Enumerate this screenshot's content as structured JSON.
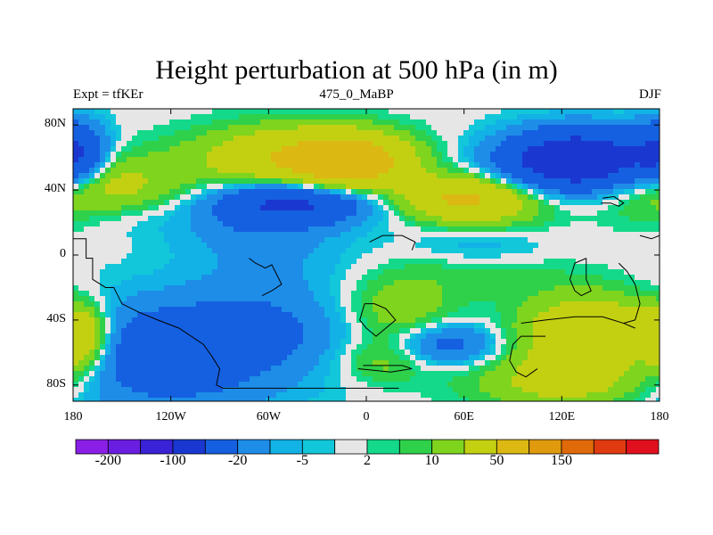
{
  "title": "Height perturbation at 500 hPa (in m)",
  "left_string": "Expt = tfKEr",
  "center_string": "475_0_MaBP",
  "right_string": "DJF",
  "chart_data": {
    "type": "heatmap",
    "variable": "500 hPa geopotential height perturbation",
    "units": "m",
    "xlim": [
      -180,
      180
    ],
    "ylim": [
      -90,
      90
    ],
    "xticks": [
      {
        "value": -180,
        "label": "180"
      },
      {
        "value": -120,
        "label": "120W"
      },
      {
        "value": -60,
        "label": "60W"
      },
      {
        "value": 0,
        "label": "0"
      },
      {
        "value": 60,
        "label": "60E"
      },
      {
        "value": 120,
        "label": "120E"
      },
      {
        "value": 180,
        "label": "180"
      }
    ],
    "yticks": [
      {
        "value": 80,
        "label": "80N"
      },
      {
        "value": 40,
        "label": "40N"
      },
      {
        "value": 0,
        "label": "0"
      },
      {
        "value": -40,
        "label": "40S"
      },
      {
        "value": -80,
        "label": "80S"
      }
    ],
    "levels": [
      -200,
      -150,
      -100,
      -50,
      -20,
      -10,
      -5,
      -2,
      2,
      5,
      10,
      20,
      50,
      100,
      150,
      200
    ],
    "colorbar_labels": [
      "-200",
      "-100",
      "-20",
      "-5",
      "2",
      "10",
      "50",
      "150"
    ],
    "colors": [
      "#8a1fe6",
      "#6a1ee0",
      "#3a22d6",
      "#1a38d0",
      "#1560e0",
      "#1e8de8",
      "#12b2e6",
      "#12c7d9",
      "#e6e6e6",
      "#14d98a",
      "#2fd04a",
      "#7fd41e",
      "#c3d012",
      "#dcb812",
      "#e09a0e",
      "#e06a0a",
      "#e03a10",
      "#e0101e"
    ],
    "field_features": [
      {
        "lon": -165,
        "lat": 42,
        "value": 30,
        "sx": 35,
        "sy": 14
      },
      {
        "lon": -45,
        "lat": 60,
        "value": 45,
        "sx": 40,
        "sy": 13
      },
      {
        "lon": -10,
        "lat": 57,
        "value": 65,
        "sx": 24,
        "sy": 11
      },
      {
        "lon": 55,
        "lat": 36,
        "value": 38,
        "sx": 25,
        "sy": 9
      },
      {
        "lon": 75,
        "lat": 32,
        "value": 24,
        "sx": 28,
        "sy": 10
      },
      {
        "lon": 130,
        "lat": 58,
        "value": -90,
        "sx": 32,
        "sy": 13
      },
      {
        "lon": -178,
        "lat": 62,
        "value": -45,
        "sx": 12,
        "sy": 14
      },
      {
        "lon": -45,
        "lat": 33,
        "value": -55,
        "sx": 32,
        "sy": 9
      },
      {
        "lon": -70,
        "lat": 20,
        "value": -12,
        "sx": 40,
        "sy": 12
      },
      {
        "lon": -60,
        "lat": -5,
        "value": -10,
        "sx": 35,
        "sy": 18
      },
      {
        "lon": 70,
        "lat": 5,
        "value": -8,
        "sx": 28,
        "sy": 8
      },
      {
        "lon": -125,
        "lat": -62,
        "value": -35,
        "sx": 55,
        "sy": 24
      },
      {
        "lon": -60,
        "lat": -45,
        "value": -14,
        "sx": 40,
        "sy": 16
      },
      {
        "lon": 20,
        "lat": -35,
        "value": 18,
        "sx": 24,
        "sy": 15
      },
      {
        "lon": 10,
        "lat": -65,
        "value": 14,
        "sx": 20,
        "sy": 10
      },
      {
        "lon": 50,
        "lat": -55,
        "value": -28,
        "sx": 22,
        "sy": 9
      },
      {
        "lon": 70,
        "lat": -12,
        "value": 7,
        "sx": 40,
        "sy": 10
      },
      {
        "lon": 140,
        "lat": -48,
        "value": 50,
        "sx": 30,
        "sy": 16
      },
      {
        "lon": 125,
        "lat": -78,
        "value": 28,
        "sx": 40,
        "sy": 12
      },
      {
        "lon": -175,
        "lat": -52,
        "value": 45,
        "sx": 12,
        "sy": 14
      },
      {
        "lon": -150,
        "lat": 25,
        "value": -7,
        "sx": 22,
        "sy": 9
      }
    ]
  }
}
